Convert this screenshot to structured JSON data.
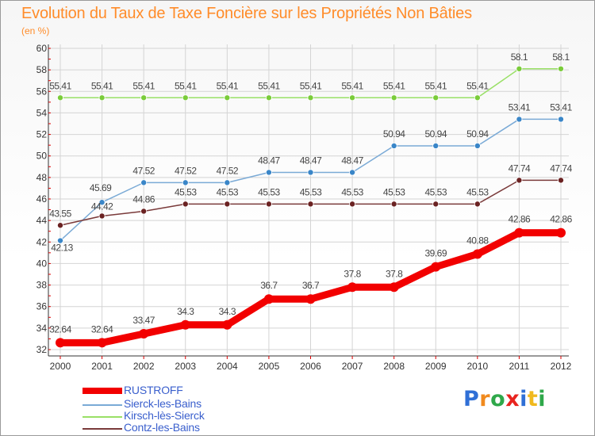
{
  "title": "Evolution du Taux de Taxe Foncière sur les Propriétés Non Bâties",
  "subtitle": "(en %)",
  "logo": {
    "letters": [
      {
        "ch": "P",
        "color": "#2f6fd6"
      },
      {
        "ch": "r",
        "color": "#f08a1e"
      },
      {
        "ch": "o",
        "color": "#2fa84a"
      },
      {
        "ch": "x",
        "color": "#e8241f"
      },
      {
        "ch": "i",
        "color": "#2f6fd6"
      },
      {
        "ch": "t",
        "color": "#f0b91e"
      },
      {
        "ch": "i",
        "color": "#2fa84a"
      }
    ]
  },
  "chart_data": {
    "type": "line",
    "x": [
      "2000",
      "2001",
      "2002",
      "2003",
      "2004",
      "2005",
      "2006",
      "2007",
      "2008",
      "2009",
      "2010",
      "2011",
      "2012"
    ],
    "ylim": [
      32,
      60
    ],
    "yticks": [
      32,
      34,
      36,
      38,
      40,
      42,
      44,
      46,
      48,
      50,
      52,
      54,
      56,
      58,
      60
    ],
    "grid": true,
    "legend_position": "bottom-left",
    "series": [
      {
        "name": "RUSTROFF",
        "color": "#f20000",
        "values": [
          32.64,
          32.64,
          33.47,
          34.3,
          34.3,
          36.7,
          36.7,
          37.8,
          37.8,
          39.69,
          40.88,
          42.86,
          42.86
        ],
        "labels": [
          "32.64",
          "32.64",
          "33.47",
          "34.3",
          "34.3",
          "36.7",
          "36.7",
          "37.8",
          "37.8",
          "39.69",
          "40.88",
          "42.86",
          "42.86"
        ]
      },
      {
        "name": "Sierck-les-Bains",
        "color": "#7aaad6",
        "marker_color": "#3a86c8",
        "values": [
          42.13,
          45.69,
          47.52,
          47.52,
          47.52,
          48.47,
          48.47,
          48.47,
          50.94,
          50.94,
          50.94,
          53.41,
          53.41
        ],
        "labels": [
          "42.13",
          "45.69",
          "47.52",
          "47.52",
          "47.52",
          "48.47",
          "48.47",
          "48.47",
          "50.94",
          "50.94",
          "50.94",
          "53.41",
          "53.41"
        ]
      },
      {
        "name": "Kirsch-lès-Sierck",
        "color": "#99e066",
        "marker_color": "#7acc3a",
        "values": [
          55.41,
          55.41,
          55.41,
          55.41,
          55.41,
          55.41,
          55.41,
          55.41,
          55.41,
          55.41,
          55.41,
          58.1,
          58.1
        ],
        "labels": [
          "55.41",
          "55.41",
          "55.41",
          "55.41",
          "55.41",
          "55.41",
          "55.41",
          "55.41",
          "55.41",
          "55.41",
          "55.41",
          "58.1",
          "58.1"
        ]
      },
      {
        "name": "Contz-les-Bains",
        "color": "#7a3a3a",
        "marker_color": "#6b2222",
        "values": [
          43.55,
          44.42,
          44.86,
          45.53,
          45.53,
          45.53,
          45.53,
          45.53,
          45.53,
          45.53,
          45.53,
          47.74,
          47.74
        ],
        "labels": [
          "43.55",
          "44.42",
          "44.86",
          "45.53",
          "45.53",
          "45.53",
          "45.53",
          "45.53",
          "45.53",
          "45.53",
          "45.53",
          "47.74",
          "47.74"
        ]
      }
    ]
  }
}
